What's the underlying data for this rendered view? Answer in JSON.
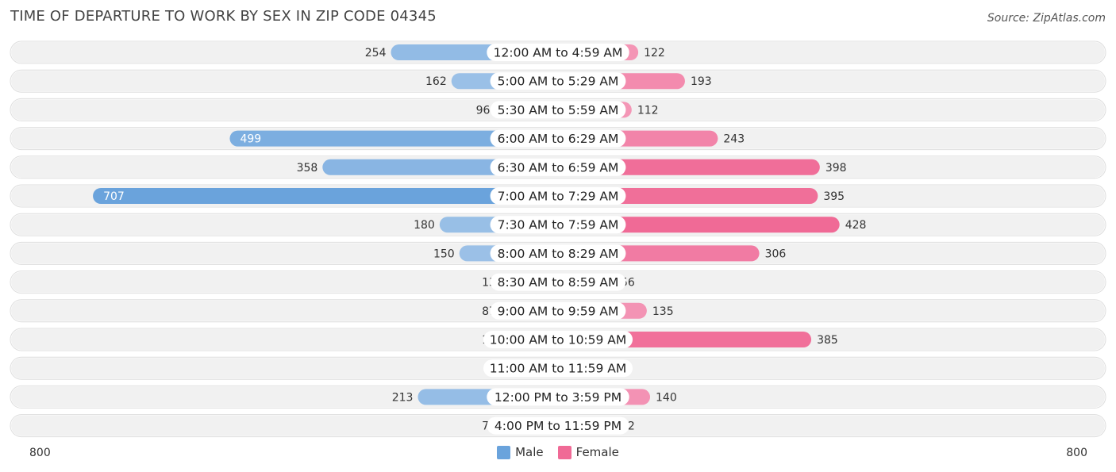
{
  "header": {
    "title": "TIME OF DEPARTURE TO WORK BY SEX IN ZIP CODE 04345",
    "source": "Source: ZipAtlas.com"
  },
  "axis": {
    "left_label": "800",
    "right_label": "800"
  },
  "legend": {
    "male": "Male",
    "female": "Female"
  },
  "colors": {
    "male_light": "#a8c8ea",
    "male_dark": "#6aa3dc",
    "female_light": "#f5a6c2",
    "female_dark": "#f06a96",
    "row_bg": "#f1f1f1"
  },
  "chart_data": {
    "type": "bar",
    "title": "TIME OF DEPARTURE TO WORK BY SEX IN ZIP CODE 04345",
    "orientation": "horizontal-diverging",
    "xlim": [
      -800,
      800
    ],
    "categories": [
      "12:00 AM to 4:59 AM",
      "5:00 AM to 5:29 AM",
      "5:30 AM to 5:59 AM",
      "6:00 AM to 6:29 AM",
      "6:30 AM to 6:59 AM",
      "7:00 AM to 7:29 AM",
      "7:30 AM to 7:59 AM",
      "8:00 AM to 8:29 AM",
      "8:30 AM to 8:59 AM",
      "9:00 AM to 9:59 AM",
      "10:00 AM to 10:59 AM",
      "11:00 AM to 11:59 AM",
      "12:00 PM to 3:59 PM",
      "4:00 PM to 11:59 PM"
    ],
    "series": [
      {
        "name": "Male",
        "values": [
          254,
          162,
          96,
          499,
          358,
          707,
          180,
          150,
          13,
          87,
          17,
          0,
          213,
          73
        ]
      },
      {
        "name": "Female",
        "values": [
          122,
          193,
          112,
          243,
          398,
          395,
          428,
          306,
          56,
          135,
          385,
          7,
          140,
          72
        ]
      }
    ],
    "legend_position": "bottom-center"
  }
}
